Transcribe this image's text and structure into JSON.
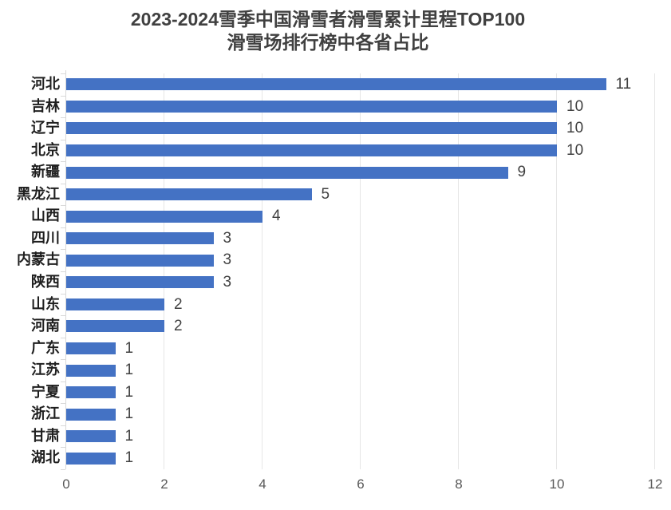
{
  "title": {
    "line1": "2023-2024雪季中国滑雪者滑雪累计里程TOP100",
    "line2": "滑雪场排行榜中各省占比"
  },
  "chart_data": {
    "type": "bar",
    "orientation": "horizontal",
    "title": "2023-2024雪季中国滑雪者滑雪累计里程TOP100 滑雪场排行榜中各省占比",
    "categories": [
      "河北",
      "吉林",
      "辽宁",
      "北京",
      "新疆",
      "黑龙江",
      "山西",
      "四川",
      "内蒙古",
      "陕西",
      "山东",
      "河南",
      "广东",
      "江苏",
      "宁夏",
      "浙江",
      "甘肃",
      "湖北"
    ],
    "values": [
      11,
      10,
      10,
      10,
      9,
      5,
      4,
      3,
      3,
      3,
      2,
      2,
      1,
      1,
      1,
      1,
      1,
      1
    ],
    "xlim": [
      0,
      12
    ],
    "x_ticks": [
      0,
      2,
      4,
      6,
      8,
      10,
      12
    ],
    "xlabel": "",
    "ylabel": "",
    "grid": true,
    "legend": false,
    "data_labels": true
  },
  "colors": {
    "bar": "#4472C4",
    "title_text": "#404040",
    "category_text": "#1F1F1F",
    "value_text": "#404040",
    "axis_text": "#595959",
    "gridline": "#E6E6E6",
    "axis_line": "#D9D9D9",
    "background": "#FFFFFF"
  }
}
